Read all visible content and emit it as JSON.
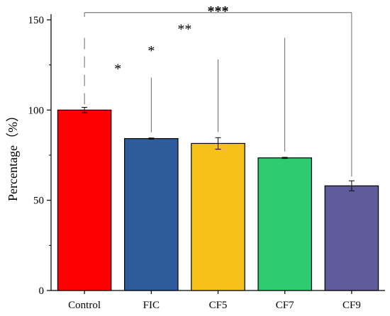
{
  "chart_data": {
    "type": "bar",
    "title": "",
    "xlabel": "",
    "ylabel": "Percentage（%）",
    "ylim": [
      0,
      150
    ],
    "yticks": [
      0,
      50,
      100,
      150
    ],
    "grid": false,
    "legend": "none",
    "categories": [
      "Control",
      "FIC",
      "CF5",
      "CF7",
      "CF9"
    ],
    "values": [
      100,
      84.2,
      81.5,
      73.5,
      58
    ],
    "errors": [
      1.5,
      0.3,
      3.2,
      0.3,
      2.8
    ],
    "colors": [
      "#ff0000",
      "#2e5c9a",
      "#f5c11a",
      "#2ecc71",
      "#5e5c9a"
    ],
    "significance": [
      {
        "label": "*",
        "from": "Control",
        "to": "FIC",
        "y": 118
      },
      {
        "label": "*",
        "from": "Control",
        "to": "CF5",
        "y": 128
      },
      {
        "label": "**",
        "from": "Control",
        "to": "CF7",
        "y": 140
      },
      {
        "label": "***",
        "from": "Control",
        "to": "CF9",
        "y": 154
      }
    ]
  }
}
